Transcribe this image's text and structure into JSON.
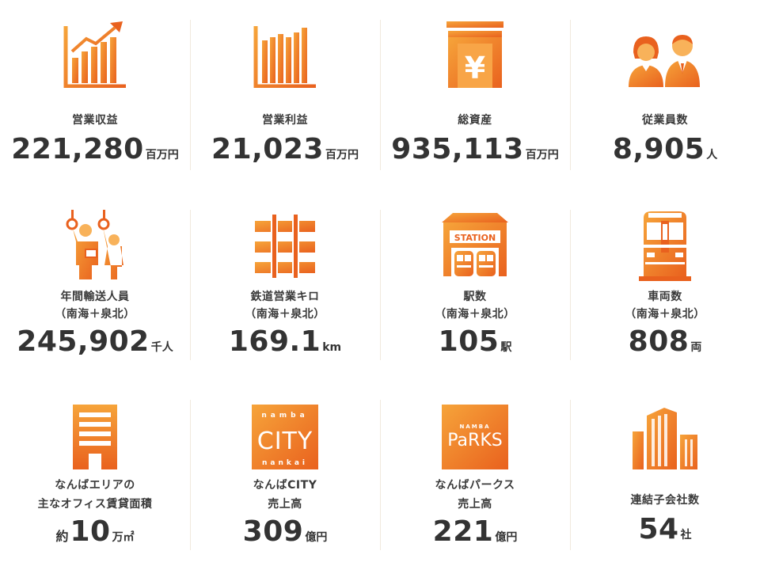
{
  "colors": {
    "accent_light": "#f6a43a",
    "accent_dark": "#e9611e",
    "text": "#333333"
  },
  "stats": [
    {
      "icon": "revenue-chart-icon",
      "label": "営業収益",
      "label2": "",
      "value": "221,280",
      "unit": "百万円",
      "prefix": ""
    },
    {
      "icon": "profit-chart-icon",
      "label": "営業利益",
      "label2": "",
      "value": "21,023",
      "unit": "百万円",
      "prefix": ""
    },
    {
      "icon": "yen-building-icon",
      "label": "総資産",
      "label2": "",
      "value": "935,113",
      "unit": "百万円",
      "prefix": ""
    },
    {
      "icon": "employees-icon",
      "label": "従業員数",
      "label2": "",
      "value": "8,905",
      "unit": "人",
      "prefix": ""
    },
    {
      "icon": "commuters-icon",
      "label": "年間輸送人員",
      "label2": "（南海＋泉北）",
      "value": "245,902",
      "unit": "千人",
      "prefix": ""
    },
    {
      "icon": "railway-track-icon",
      "label": "鉄道営業キロ",
      "label2": "（南海＋泉北）",
      "value": "169.1",
      "unit": "km",
      "prefix": ""
    },
    {
      "icon": "station-icon",
      "label": "駅数",
      "label2": "（南海＋泉北）",
      "value": "105",
      "unit": "駅",
      "prefix": "",
      "station_text": "STATION"
    },
    {
      "icon": "train-front-icon",
      "label": "車両数",
      "label2": "（南海＋泉北）",
      "value": "808",
      "unit": "両",
      "prefix": ""
    },
    {
      "icon": "office-building-icon",
      "label": "なんばエリアの",
      "label2": "主なオフィス賃貸面積",
      "value": "10",
      "unit": "万㎡",
      "prefix": "約"
    },
    {
      "icon": "namba-city-logo-icon",
      "label": "なんばCITY",
      "label2": "売上高",
      "value": "309",
      "unit": "億円",
      "prefix": "",
      "logo_top": "namba",
      "logo_main": "CITY",
      "logo_bottom": "nankai"
    },
    {
      "icon": "namba-parks-logo-icon",
      "label": "なんばパークス",
      "label2": "売上高",
      "value": "221",
      "unit": "億円",
      "prefix": "",
      "logo_top": "NAMBA",
      "logo_main": "PaRKS"
    },
    {
      "icon": "subsidiaries-buildings-icon",
      "label": "連結子会社数",
      "label2": "",
      "value": "54",
      "unit": "社",
      "prefix": ""
    }
  ]
}
